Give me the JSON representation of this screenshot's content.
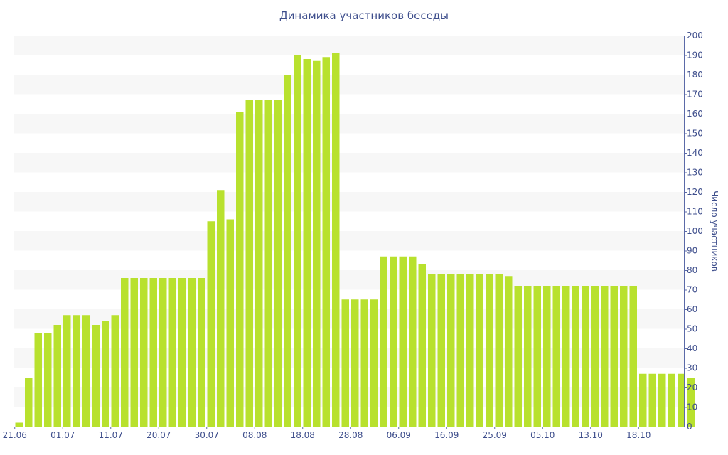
{
  "chart_data": {
    "type": "bar",
    "title": "Динамика участников беседы",
    "xlabel": "",
    "ylabel": "Число участников",
    "ylim": [
      0,
      200
    ],
    "yticks": [
      0,
      10,
      20,
      30,
      40,
      50,
      60,
      70,
      80,
      90,
      100,
      110,
      120,
      130,
      140,
      150,
      160,
      170,
      180,
      190,
      200
    ],
    "x_tick_labels": [
      "21.06",
      "01.07",
      "11.07",
      "20.07",
      "30.07",
      "08.08",
      "18.08",
      "28.08",
      "06.09",
      "16.09",
      "25.09",
      "05.10",
      "13.10",
      "18.10"
    ],
    "x_tick_indices": [
      0,
      5,
      10,
      15,
      20,
      25,
      30,
      35,
      40,
      45,
      50,
      55,
      60,
      65
    ],
    "y_axis_position": "right",
    "grid": "alternating horizontal bands",
    "legend": "none",
    "bar_color": "#b8e12e",
    "band_color": "#f7f7f7",
    "text_color": "#3e4e8c",
    "axis_color": "#5b6aa8",
    "values": [
      2,
      25,
      48,
      48,
      52,
      57,
      57,
      57,
      52,
      54,
      57,
      76,
      76,
      76,
      76,
      76,
      76,
      76,
      76,
      76,
      105,
      121,
      106,
      161,
      167,
      167,
      167,
      167,
      180,
      190,
      188,
      187,
      189,
      191,
      65,
      65,
      65,
      65,
      87,
      87,
      87,
      87,
      83,
      78,
      78,
      78,
      78,
      78,
      78,
      78,
      78,
      77,
      72,
      72,
      72,
      72,
      72,
      72,
      72,
      72,
      72,
      72,
      72,
      72,
      72,
      27,
      27,
      27,
      27,
      27,
      25
    ]
  }
}
